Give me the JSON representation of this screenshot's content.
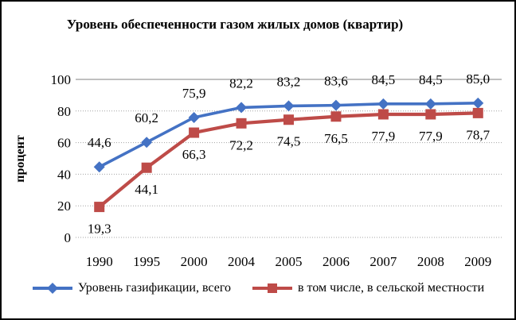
{
  "chart_data": {
    "type": "line",
    "title": "Уровень обеспеченности газом жилых домов (квартир)",
    "xlabel": "",
    "ylabel": "процент",
    "categories": [
      "1990",
      "1995",
      "2000",
      "2004",
      "2005",
      "2006",
      "2007",
      "2008",
      "2009"
    ],
    "yticks": [
      0,
      20,
      40,
      60,
      80,
      100
    ],
    "ylim": [
      0,
      100
    ],
    "grid": true,
    "legend_position": "bottom",
    "decimal_separator": ",",
    "background": "#ffffff",
    "border_color": "#000000",
    "gridline_color": "#a3a3a3",
    "series": [
      {
        "name": "Уровень газификации, всего",
        "marker": "diamond",
        "color": "#4472C4",
        "label_position": "above",
        "values": [
          44.6,
          60.2,
          75.9,
          82.2,
          83.2,
          83.6,
          84.5,
          84.5,
          85.0
        ]
      },
      {
        "name": "в том числе, в сельской местности",
        "marker": "square",
        "color": "#BE4B48",
        "label_position": "below",
        "values": [
          19.3,
          44.1,
          66.3,
          72.2,
          74.5,
          76.5,
          77.9,
          77.9,
          78.7
        ]
      }
    ]
  }
}
